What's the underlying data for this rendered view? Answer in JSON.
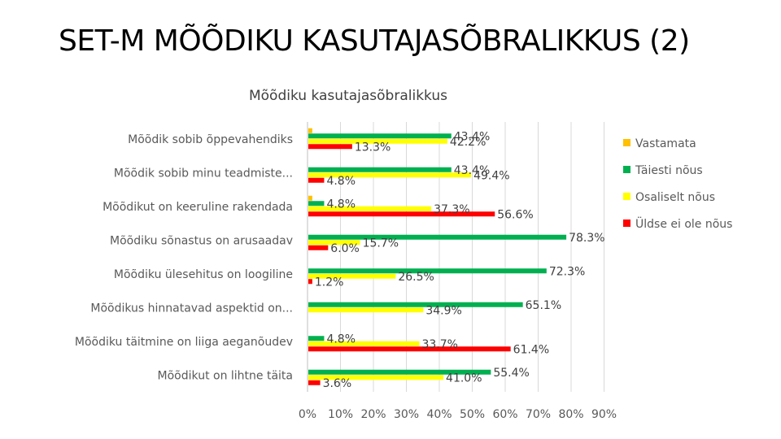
{
  "slide_title": "SET-M MÕÕDIKU KASUTAJASÕBRALIKKUS (2)",
  "chart_data": {
    "type": "bar",
    "orientation": "horizontal",
    "title": "Mõõdiku kasutajasõbralikkus",
    "categories": [
      "Mõõdik sobib õppevahendiks",
      "Mõõdik sobib minu teadmiste...",
      "Mõõdikut on keeruline rakendada",
      "Mõõdiku sõnastus on arusaadav",
      "Mõõdiku ülesehitus on loogiline",
      "Mõõdikus hinnatavad aspektid on...",
      "Mõõdiku täitmine on liiga aeganõudev",
      "Mõõdikut on lihtne täita"
    ],
    "series": [
      {
        "name": "Vastamata",
        "color": "#FFC000",
        "values": [
          1.2,
          0,
          1.2,
          0,
          0,
          0,
          0,
          0
        ]
      },
      {
        "name": "Täiesti nõus",
        "color": "#00B050",
        "values": [
          43.4,
          43.4,
          4.8,
          78.3,
          72.3,
          65.1,
          4.8,
          55.4
        ]
      },
      {
        "name": "Osaliselt nõus",
        "color": "#FFFF00",
        "values": [
          42.2,
          49.4,
          37.3,
          15.7,
          26.5,
          34.9,
          33.7,
          41.0
        ]
      },
      {
        "name": "Üldse ei ole nõus",
        "color": "#FF0000",
        "values": [
          13.3,
          4.8,
          56.6,
          6.0,
          1.2,
          0,
          61.4,
          3.6
        ]
      }
    ],
    "data_labels": [
      [
        "",
        "43.4%",
        "42.2%",
        "13.3%"
      ],
      [
        "",
        "43.4%",
        "49.4%",
        "4.8%"
      ],
      [
        "",
        "4.8%",
        "37.3%",
        "56.6%"
      ],
      [
        "",
        "78.3%",
        "15.7%",
        "6.0%"
      ],
      [
        "",
        "72.3%",
        "26.5%",
        "1.2%"
      ],
      [
        "",
        "65.1%",
        "34.9%",
        ""
      ],
      [
        "",
        "4.8%",
        "33.7%",
        "61.4%"
      ],
      [
        "",
        "55.4%",
        "41.0%",
        "3.6%"
      ]
    ],
    "x_ticks": [
      "0%",
      "10%",
      "20%",
      "30%",
      "40%",
      "50%",
      "60%",
      "70%",
      "80%",
      "90%"
    ],
    "xlim": [
      0,
      90
    ],
    "grid": true,
    "legend_position": "right"
  }
}
